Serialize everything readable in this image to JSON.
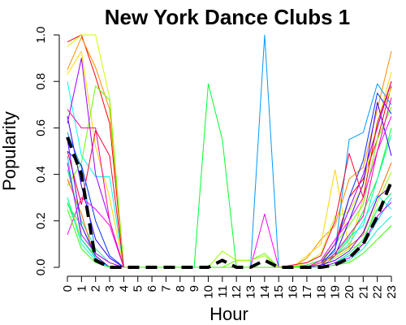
{
  "chart_data": {
    "type": "line",
    "title": "New York Dance Clubs 1",
    "xlabel": "Hour",
    "ylabel": "Popularity",
    "x": [
      0,
      1,
      2,
      3,
      4,
      5,
      6,
      7,
      8,
      9,
      10,
      11,
      12,
      13,
      14,
      15,
      16,
      17,
      18,
      19,
      20,
      21,
      22,
      23
    ],
    "x_tick_labels": [
      "0",
      "1",
      "2",
      "3",
      "4",
      "5",
      "6",
      "7",
      "8",
      "9",
      "10",
      "11",
      "12",
      "13",
      "14",
      "15",
      "16",
      "17",
      "18",
      "19",
      "20",
      "21",
      "22",
      "23"
    ],
    "y_ticks": [
      0.0,
      0.2,
      0.4,
      0.6,
      0.8,
      1.0
    ],
    "y_tick_labels": [
      "0.0",
      "0.2",
      "0.4",
      "0.6",
      "0.8",
      "1.0"
    ],
    "xlim": [
      0,
      23
    ],
    "ylim": [
      0,
      1.0
    ],
    "grid": false,
    "series": [
      {
        "color": "#ff0000",
        "values": [
          0.97,
          1.0,
          0.82,
          0.62,
          0,
          0,
          0,
          0,
          0,
          0,
          0,
          0,
          0,
          0,
          0,
          0,
          0,
          0,
          0.02,
          0.1,
          0.3,
          0.38,
          0.55,
          0.78
        ]
      },
      {
        "color": "#ff8c00",
        "values": [
          0.85,
          0.99,
          0.86,
          0.68,
          0,
          0,
          0,
          0,
          0,
          0,
          0,
          0,
          0,
          0,
          0,
          0,
          0,
          0.04,
          0.12,
          0.18,
          0.38,
          0.43,
          0.68,
          0.93
        ]
      },
      {
        "color": "#ffd700",
        "values": [
          0.83,
          0.93,
          0.52,
          0.3,
          0,
          0,
          0,
          0,
          0,
          0,
          0,
          0,
          0,
          0,
          0,
          0,
          0,
          0.05,
          0.1,
          0.42,
          0.08,
          0.3,
          0.62,
          0.84
        ]
      },
      {
        "color": "#ccff00",
        "values": [
          0.95,
          1.0,
          1.0,
          0.73,
          0,
          0,
          0,
          0,
          0,
          0,
          0,
          0,
          0,
          0,
          0,
          0,
          0,
          0.02,
          0.06,
          0.22,
          0.24,
          0.35,
          0.63,
          0.77
        ]
      },
      {
        "color": "#66ff00",
        "values": [
          0.35,
          0.45,
          0.78,
          0.72,
          0,
          0,
          0,
          0,
          0,
          0,
          0,
          0,
          0.03,
          0.03,
          0.06,
          0,
          0,
          0,
          0.03,
          0.1,
          0.18,
          0.27,
          0.55,
          0.69
        ]
      },
      {
        "color": "#00ff33",
        "values": [
          0.28,
          0.12,
          0.05,
          0,
          0,
          0,
          0,
          0,
          0,
          0,
          0.79,
          0.55,
          0,
          0,
          0,
          0,
          0,
          0.01,
          0.03,
          0.05,
          0.12,
          0.24,
          0.38,
          0.6
        ]
      },
      {
        "color": "#00ff99",
        "values": [
          0.42,
          0.2,
          0.08,
          0.02,
          0,
          0,
          0,
          0,
          0,
          0,
          0,
          0,
          0,
          0,
          0,
          0,
          0,
          0,
          0.01,
          0.06,
          0.13,
          0.18,
          0.38,
          0.57
        ]
      },
      {
        "color": "#00ffff",
        "values": [
          0.8,
          0.48,
          0.39,
          0.39,
          0,
          0,
          0,
          0,
          0,
          0,
          0,
          0,
          0,
          0,
          0,
          0,
          0,
          0,
          0.02,
          0.05,
          0.1,
          0.2,
          0.31,
          0.25
        ]
      },
      {
        "color": "#0099ff",
        "values": [
          0.58,
          0.43,
          0.06,
          0.02,
          0,
          0,
          0,
          0,
          0,
          0,
          0,
          0,
          0,
          0,
          1.0,
          0,
          0,
          0,
          0.02,
          0.07,
          0.55,
          0.58,
          0.79,
          0.7
        ]
      },
      {
        "color": "#0033ff",
        "values": [
          0.5,
          0.44,
          0.2,
          0.05,
          0,
          0,
          0,
          0,
          0,
          0,
          0,
          0,
          0,
          0,
          0,
          0,
          0,
          0,
          0.01,
          0.08,
          0.3,
          0.46,
          0.75,
          0.66
        ]
      },
      {
        "color": "#3300ff",
        "values": [
          0.65,
          0.35,
          0.12,
          0.04,
          0,
          0,
          0,
          0,
          0,
          0,
          0,
          0,
          0,
          0,
          0,
          0,
          0,
          0,
          0,
          0.05,
          0.2,
          0.36,
          0.71,
          0.48
        ]
      },
      {
        "color": "#9900ff",
        "values": [
          0.62,
          0.9,
          0.4,
          0.2,
          0,
          0,
          0,
          0,
          0,
          0,
          0,
          0,
          0,
          0,
          0,
          0,
          0,
          0,
          0.02,
          0.1,
          0.25,
          0.4,
          0.6,
          0.8
        ]
      },
      {
        "color": "#ff00ff",
        "values": [
          0.14,
          0.3,
          0.25,
          0.18,
          0,
          0,
          0,
          0,
          0,
          0,
          0,
          0,
          0,
          0,
          0.23,
          0,
          0,
          0,
          0.03,
          0.12,
          0.2,
          0.3,
          0.5,
          0.65
        ]
      },
      {
        "color": "#ff0099",
        "values": [
          0.68,
          0.6,
          0.6,
          0.2,
          0,
          0,
          0,
          0,
          0,
          0,
          0,
          0,
          0,
          0,
          0,
          0,
          0,
          0,
          0.01,
          0.06,
          0.14,
          0.22,
          0.5,
          0.73
        ]
      },
      {
        "color": "#ff0033",
        "values": [
          0.5,
          0.27,
          0.59,
          0.48,
          0,
          0,
          0,
          0,
          0,
          0,
          0,
          0,
          0,
          0,
          0,
          0,
          0.01,
          0.02,
          0.05,
          0.2,
          0.49,
          0.3,
          0.62,
          0.8
        ]
      },
      {
        "color": "#ff6600",
        "values": [
          0.38,
          0.23,
          0.03,
          0,
          0,
          0,
          0,
          0,
          0,
          0,
          0,
          0,
          0,
          0,
          0,
          0,
          0,
          0,
          0.02,
          0.05,
          0.09,
          0.14,
          0.3,
          0.45
        ]
      },
      {
        "color": "#99ff00",
        "values": [
          0.3,
          0.12,
          0.05,
          0,
          0,
          0,
          0,
          0,
          0,
          0,
          0,
          0.07,
          0.03,
          0.03,
          0.05,
          0,
          0,
          0,
          0.01,
          0.04,
          0.08,
          0.1,
          0.28,
          0.41
        ]
      },
      {
        "color": "#00ff66",
        "values": [
          0.27,
          0.18,
          0.04,
          0,
          0,
          0,
          0,
          0,
          0,
          0,
          0,
          0,
          0,
          0,
          0,
          0,
          0,
          0,
          0,
          0.02,
          0.06,
          0.12,
          0.25,
          0.32
        ]
      },
      {
        "color": "#00ccff",
        "values": [
          0.48,
          0.12,
          0.04,
          0,
          0,
          0,
          0,
          0,
          0,
          0,
          0,
          0,
          0,
          0,
          0,
          0,
          0,
          0,
          0,
          0.02,
          0.05,
          0.1,
          0.2,
          0.3
        ]
      },
      {
        "color": "#6600ff",
        "values": [
          0.55,
          0.18,
          0.05,
          0,
          0,
          0,
          0,
          0,
          0,
          0,
          0,
          0,
          0,
          0,
          0,
          0,
          0,
          0,
          0.01,
          0.03,
          0.07,
          0.15,
          0.3,
          0.35
        ]
      },
      {
        "color": "#cc00ff",
        "values": [
          0.45,
          0.14,
          0.06,
          0.02,
          0,
          0,
          0,
          0,
          0,
          0,
          0,
          0,
          0,
          0,
          0,
          0,
          0,
          0,
          0,
          0.02,
          0.04,
          0.1,
          0.22,
          0.28
        ]
      },
      {
        "color": "#00ffcc",
        "values": [
          0.3,
          0.1,
          0.03,
          0,
          0,
          0,
          0,
          0,
          0,
          0,
          0,
          0,
          0,
          0,
          0,
          0,
          0,
          0,
          0,
          0.01,
          0.03,
          0.08,
          0.16,
          0.22
        ]
      },
      {
        "color": "#33ff00",
        "values": [
          0.25,
          0.08,
          0.02,
          0,
          0,
          0,
          0,
          0,
          0,
          0,
          0,
          0,
          0,
          0,
          0,
          0,
          0,
          0,
          0,
          0.01,
          0.02,
          0.06,
          0.12,
          0.18
        ]
      },
      {
        "color": "#000000",
        "dashed": true,
        "width": 4,
        "values": [
          0.56,
          0.4,
          0.03,
          0,
          0,
          0,
          0,
          0,
          0,
          0,
          0,
          0.03,
          0,
          0,
          0.03,
          0,
          0,
          0,
          0,
          0.01,
          0.04,
          0.1,
          0.22,
          0.37
        ]
      }
    ]
  }
}
